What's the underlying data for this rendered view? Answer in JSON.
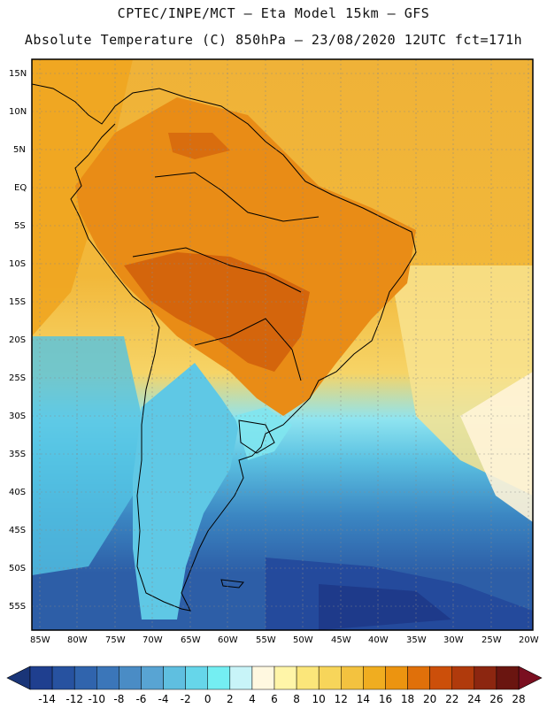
{
  "header": {
    "line1": "CPTEC/INPE/MCT –  Eta Model 15km – GFS",
    "line2": "Absolute Temperature (C) 850hPa – 23/08/2020 12UTC fct=171h"
  },
  "axes": {
    "lat_labels": [
      "15N",
      "10N",
      "5N",
      "EQ",
      "5S",
      "10S",
      "15S",
      "20S",
      "25S",
      "30S",
      "35S",
      "40S",
      "45S",
      "50S",
      "55S"
    ],
    "lon_labels": [
      "85W",
      "80W",
      "75W",
      "70W",
      "65W",
      "60W",
      "55W",
      "50W",
      "45W",
      "40W",
      "35W",
      "30W",
      "25W",
      "20W"
    ]
  },
  "colorbar": {
    "ticks": [
      "-14",
      "-12",
      "-10",
      "-8",
      "-6",
      "-4",
      "-2",
      "0",
      "2",
      "4",
      "6",
      "8",
      "10",
      "12",
      "14",
      "16",
      "18",
      "20",
      "22",
      "24",
      "26",
      "28"
    ],
    "colors": [
      "#1f3f8f",
      "#2752a0",
      "#3064ad",
      "#3b76b9",
      "#4a8cc5",
      "#58a4d3",
      "#5fbfe0",
      "#66d6ea",
      "#74eef2",
      "#c8f4f8",
      "#fff8e0",
      "#fff5a8",
      "#fbe67a",
      "#f7d55a",
      "#f3c23f",
      "#f0ad20",
      "#ec9410",
      "#e0700a",
      "#cc4f0a",
      "#b03a0c",
      "#8c2610",
      "#6a1510"
    ]
  }
}
